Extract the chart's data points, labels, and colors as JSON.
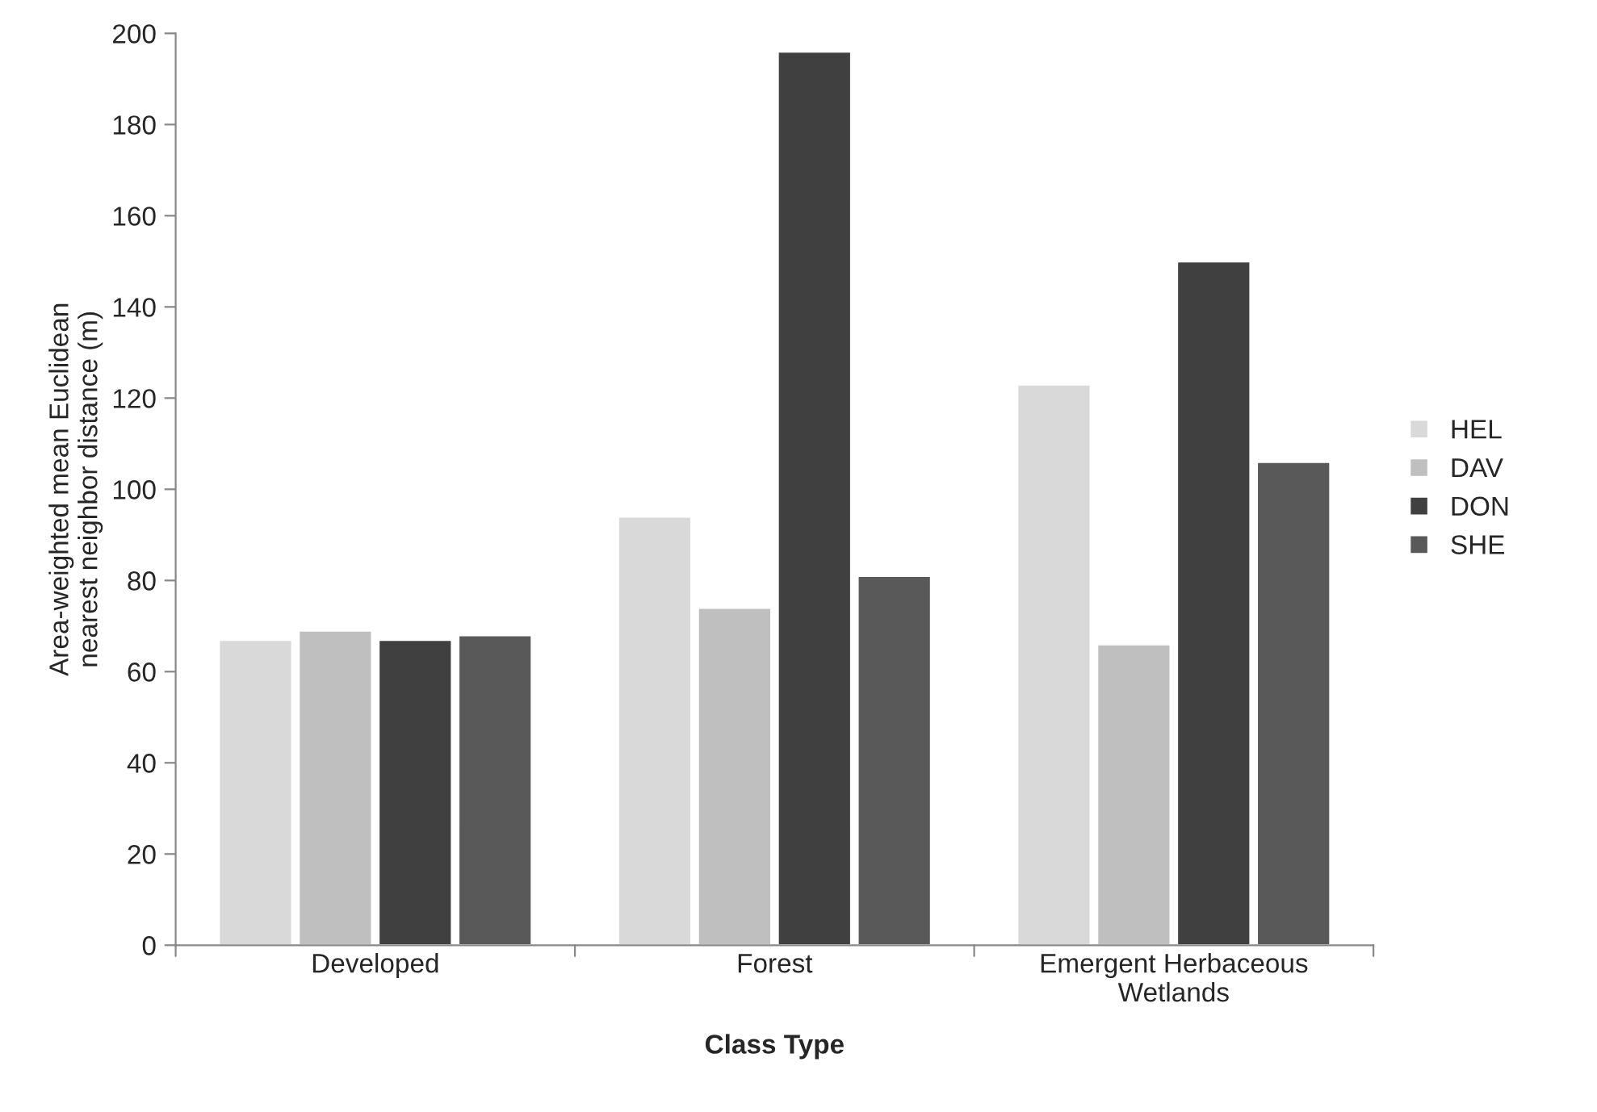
{
  "chart_data": {
    "type": "bar",
    "xlabel": "Class Type",
    "ylabel": "Area-weighted mean Euclidean\nnearest neighbor distance (m)",
    "categories": [
      "Developed",
      "Forest",
      "Emergent Herbaceous\nWetlands"
    ],
    "series": [
      {
        "name": "HEL",
        "color": "#d9d9d9",
        "values": [
          67,
          94,
          123
        ]
      },
      {
        "name": "DAV",
        "color": "#bfbfbf",
        "values": [
          69,
          74,
          66
        ]
      },
      {
        "name": "DON",
        "color": "#404040",
        "values": [
          67,
          196,
          150
        ]
      },
      {
        "name": "SHE",
        "color": "#595959",
        "values": [
          68,
          81,
          106
        ]
      }
    ],
    "ylim": [
      0,
      200
    ],
    "yticks": [
      0,
      20,
      40,
      60,
      80,
      100,
      120,
      140,
      160,
      180,
      200
    ],
    "grid": false,
    "legend": "right"
  }
}
